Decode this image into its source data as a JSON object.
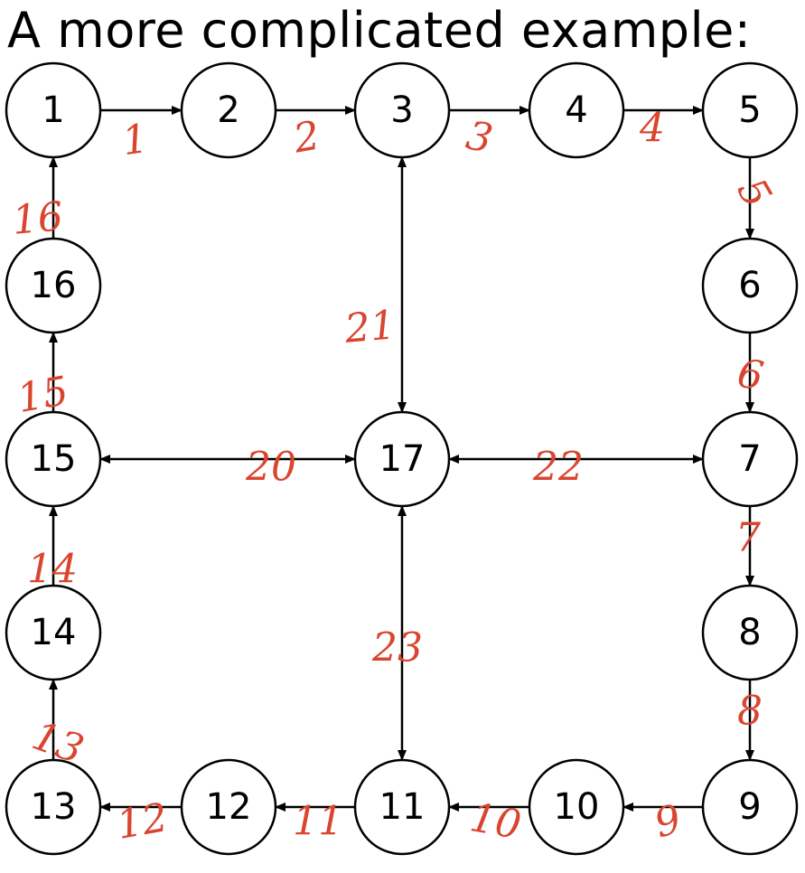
{
  "title": "A more complicated example:",
  "nodes": [
    "1",
    "2",
    "3",
    "4",
    "5",
    "6",
    "7",
    "8",
    "9",
    "10",
    "11",
    "12",
    "13",
    "14",
    "15",
    "16",
    "17"
  ],
  "edges": [
    {
      "from": "1",
      "to": "2",
      "annotation": "1"
    },
    {
      "from": "2",
      "to": "3",
      "annotation": "2"
    },
    {
      "from": "3",
      "to": "4",
      "annotation": "3"
    },
    {
      "from": "4",
      "to": "5",
      "annotation": "4"
    },
    {
      "from": "5",
      "to": "6",
      "annotation": "5"
    },
    {
      "from": "6",
      "to": "7",
      "annotation": "6"
    },
    {
      "from": "7",
      "to": "8",
      "annotation": "7"
    },
    {
      "from": "8",
      "to": "9",
      "annotation": "8"
    },
    {
      "from": "9",
      "to": "10",
      "annotation": "9"
    },
    {
      "from": "10",
      "to": "11",
      "annotation": "10"
    },
    {
      "from": "11",
      "to": "12",
      "annotation": "11"
    },
    {
      "from": "12",
      "to": "13",
      "annotation": "12"
    },
    {
      "from": "13",
      "to": "14",
      "annotation": "13"
    },
    {
      "from": "14",
      "to": "15",
      "annotation": "14"
    },
    {
      "from": "15",
      "to": "16",
      "annotation": "15"
    },
    {
      "from": "16",
      "to": "1",
      "annotation": "16"
    },
    {
      "from": "15",
      "to": "17",
      "bidirectional": true,
      "annotation": "20"
    },
    {
      "from": "3",
      "to": "17",
      "bidirectional": true,
      "annotation": "21"
    },
    {
      "from": "17",
      "to": "7",
      "bidirectional": true,
      "annotation": "22"
    },
    {
      "from": "17",
      "to": "11",
      "bidirectional": true,
      "annotation": "23"
    }
  ],
  "colors": {
    "node_stroke": "#000000",
    "edge": "#000000",
    "annotation": "#d9452f"
  }
}
